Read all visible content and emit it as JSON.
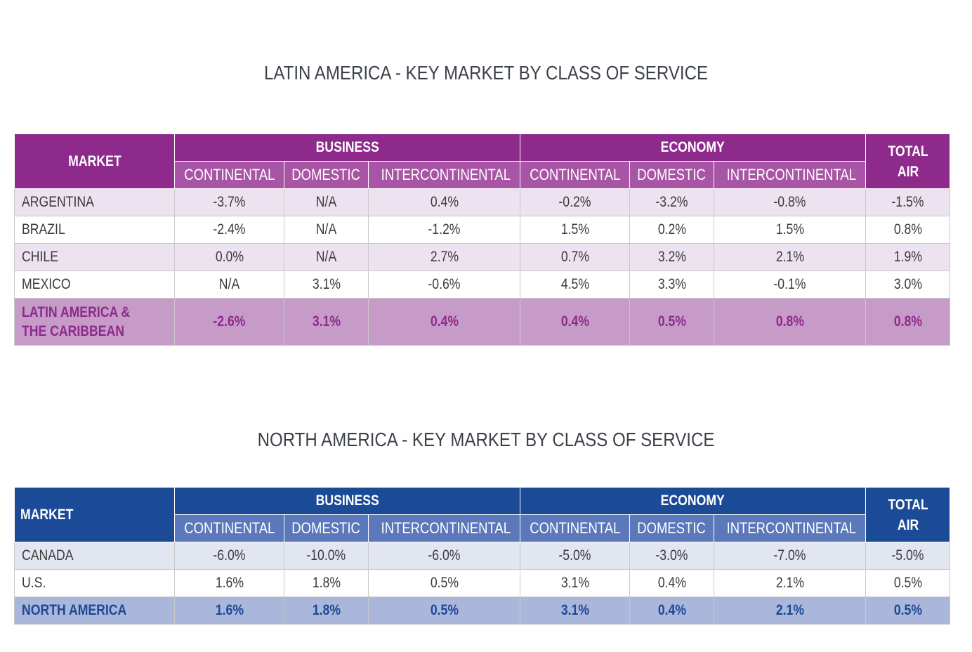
{
  "chart_data": [
    {
      "type": "table",
      "title": "LATIN AMERICA - KEY MARKET BY CLASS OF SERVICE",
      "header": {
        "market": "MARKET",
        "business": "BUSINESS",
        "economy": "ECONOMY",
        "total_line1": "TOTAL",
        "total_line2": "AIR",
        "sub": [
          "CONTINENTAL",
          "DOMESTIC",
          "INTERCONTINENTAL",
          "CONTINENTAL",
          "DOMESTIC",
          "INTERCONTINENTAL"
        ]
      },
      "rows": [
        {
          "market": "ARGENTINA",
          "values": [
            "-3.7%",
            "N/A",
            "0.4%",
            "-0.2%",
            "-3.2%",
            "-0.8%",
            "-1.5%"
          ]
        },
        {
          "market": "BRAZIL",
          "values": [
            "-2.4%",
            "N/A",
            "-1.2%",
            "1.5%",
            "0.2%",
            "1.5%",
            "0.8%"
          ]
        },
        {
          "market": "CHILE",
          "values": [
            "0.0%",
            "N/A",
            "2.7%",
            "0.7%",
            "3.2%",
            "2.1%",
            "1.9%"
          ]
        },
        {
          "market": "MEXICO",
          "values": [
            "N/A",
            "3.1%",
            "-0.6%",
            "4.5%",
            "3.3%",
            "-0.1%",
            "3.0%"
          ]
        }
      ],
      "total": {
        "market_line1": "LATIN AMERICA &",
        "market_line2": "THE CARIBBEAN",
        "values": [
          "-2.6%",
          "3.1%",
          "0.4%",
          "0.4%",
          "0.5%",
          "0.8%",
          "0.8%"
        ]
      },
      "colors": {
        "header": "#8d2a8b",
        "subheader": "#a855a6",
        "row_alt": "#ede2ef",
        "total": "#c79bc8"
      }
    },
    {
      "type": "table",
      "title": "NORTH AMERICA - KEY MARKET BY CLASS OF SERVICE",
      "header": {
        "market": "MARKET",
        "business": "BUSINESS",
        "economy": "ECONOMY",
        "total_line1": "TOTAL",
        "total_line2": "AIR",
        "sub": [
          "CONTINENTAL",
          "DOMESTIC",
          "INTERCONTINENTAL",
          "CONTINENTAL",
          "DOMESTIC",
          "INTERCONTINENTAL"
        ]
      },
      "rows": [
        {
          "market": "CANADA",
          "values": [
            "-6.0%",
            "-10.0%",
            "-6.0%",
            "-5.0%",
            "-3.0%",
            "-7.0%",
            "-5.0%"
          ]
        },
        {
          "market": "U.S.",
          "values": [
            "1.6%",
            "1.8%",
            "0.5%",
            "3.1%",
            "0.4%",
            "2.1%",
            "0.5%"
          ]
        }
      ],
      "total": {
        "market": "NORTH AMERICA",
        "values": [
          "1.6%",
          "1.8%",
          "0.5%",
          "3.1%",
          "0.4%",
          "2.1%",
          "0.5%"
        ]
      },
      "colors": {
        "header": "#1b4a97",
        "subheader": "#5b78bb",
        "row_alt": "#e2e6f1",
        "total": "#abb6db"
      }
    }
  ]
}
